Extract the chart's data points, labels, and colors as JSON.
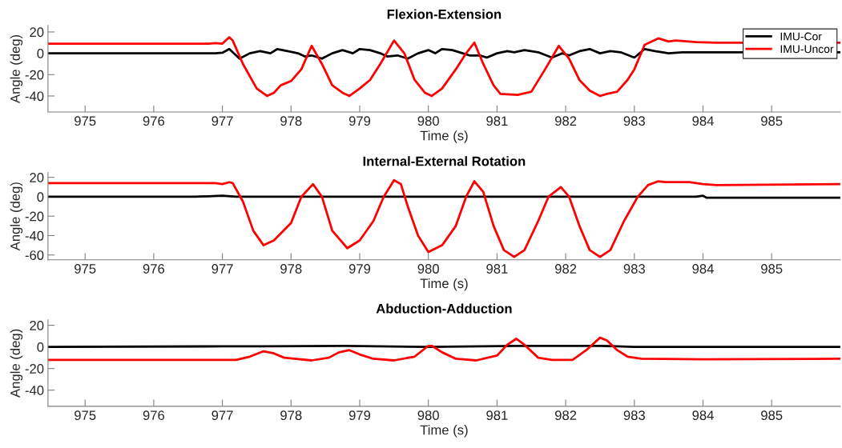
{
  "chart_data": [
    {
      "type": "line",
      "title": "Flexion-Extension",
      "xlabel": "Time (s)",
      "ylabel": "Angle (deg)",
      "xlim": [
        974.46,
        986.0
      ],
      "xticks": [
        975,
        976,
        977,
        978,
        979,
        980,
        981,
        982,
        983,
        984,
        985
      ],
      "ylim": [
        -55,
        26
      ],
      "yticks": [
        -40,
        -20,
        0,
        20
      ],
      "grid": false,
      "legend": "top right",
      "series": [
        {
          "name": "IMU-Cor",
          "color": "#000000",
          "x": [
            974.46,
            976.9,
            977.0,
            977.1,
            977.25,
            977.4,
            977.55,
            977.7,
            977.8,
            977.95,
            978.1,
            978.2,
            978.3,
            978.45,
            978.6,
            978.75,
            978.9,
            979.0,
            979.15,
            979.3,
            979.4,
            979.55,
            979.7,
            979.85,
            980.0,
            980.1,
            980.2,
            980.35,
            980.5,
            980.6,
            980.75,
            980.85,
            981.0,
            981.15,
            981.25,
            981.4,
            981.6,
            981.8,
            981.95,
            982.05,
            982.2,
            982.35,
            982.5,
            982.65,
            982.8,
            983.0,
            983.15,
            983.3,
            983.5,
            983.7,
            986.0
          ],
          "values": [
            0,
            0,
            0.5,
            4,
            -5,
            0,
            2,
            0,
            4,
            2,
            0,
            -3,
            -2,
            -5,
            0,
            3,
            0,
            4,
            3,
            0,
            -3,
            -2,
            -5,
            0,
            3,
            0,
            4,
            3,
            0,
            -2,
            -2,
            -4,
            0,
            2,
            1,
            3,
            1,
            -4,
            0,
            -2,
            2,
            4,
            0,
            2,
            1,
            -4,
            4,
            2,
            0,
            1,
            1
          ]
        },
        {
          "name": "IMU-Uncor",
          "color": "#ff0000",
          "x": [
            974.46,
            976.8,
            976.9,
            977.0,
            977.1,
            977.15,
            977.3,
            977.5,
            977.65,
            977.75,
            977.85,
            978.0,
            978.15,
            978.3,
            978.45,
            978.6,
            978.75,
            978.85,
            979.0,
            979.15,
            979.3,
            979.5,
            979.65,
            979.8,
            979.95,
            980.05,
            980.2,
            980.4,
            980.55,
            980.67,
            980.8,
            980.95,
            981.05,
            981.3,
            981.5,
            981.7,
            981.9,
            982.05,
            982.2,
            982.35,
            982.5,
            982.6,
            982.75,
            982.9,
            983.0,
            983.15,
            983.25,
            983.35,
            983.5,
            983.6,
            983.9,
            984.2,
            986.0
          ],
          "values": [
            9,
            9,
            9.5,
            9,
            15,
            12,
            -10,
            -33,
            -40,
            -37,
            -30,
            -26,
            -15,
            7,
            -10,
            -30,
            -37,
            -40,
            -33,
            -25,
            -10,
            12,
            0,
            -25,
            -37,
            -40,
            -33,
            -15,
            0,
            10,
            -10,
            -30,
            -38,
            -39,
            -36,
            -15,
            7,
            -5,
            -25,
            -35,
            -40,
            -38,
            -36,
            -25,
            -15,
            8,
            11,
            14,
            11,
            12,
            10.5,
            10,
            10
          ]
        }
      ]
    },
    {
      "type": "line",
      "title": "Internal-External Rotation",
      "xlabel": "Time (s)",
      "ylabel": "Angle (deg)",
      "xlim": [
        974.46,
        986.0
      ],
      "xticks": [
        975,
        976,
        977,
        978,
        979,
        980,
        981,
        982,
        983,
        984,
        985
      ],
      "ylim": [
        -65,
        25
      ],
      "yticks": [
        -60,
        -40,
        -20,
        0,
        20
      ],
      "grid": false,
      "series": [
        {
          "color": "#000000",
          "x": [
            974.46,
            976.6,
            977.0,
            977.2,
            983.9,
            984.0,
            984.05,
            986.0
          ],
          "values": [
            0,
            0,
            1,
            0,
            0,
            1,
            -1,
            -1
          ]
        },
        {
          "color": "#ff0000",
          "x": [
            974.46,
            976.9,
            977.0,
            977.1,
            977.15,
            977.3,
            977.45,
            977.6,
            977.75,
            978.0,
            978.15,
            978.32,
            978.45,
            978.6,
            978.82,
            979.0,
            979.2,
            979.35,
            979.5,
            979.6,
            979.7,
            979.85,
            980.0,
            980.2,
            980.4,
            980.55,
            980.67,
            980.8,
            980.95,
            981.1,
            981.25,
            981.4,
            981.6,
            981.75,
            981.93,
            982.05,
            982.2,
            982.35,
            982.5,
            982.65,
            982.85,
            983.05,
            983.2,
            983.35,
            983.45,
            983.8,
            984.0,
            984.2,
            986.0
          ],
          "values": [
            14,
            14,
            13,
            15,
            14,
            -5,
            -35,
            -50,
            -45,
            -27,
            0,
            13,
            0,
            -35,
            -53,
            -45,
            -25,
            0,
            17,
            13,
            -10,
            -40,
            -57,
            -50,
            -30,
            0,
            16,
            5,
            -30,
            -55,
            -62,
            -55,
            -25,
            0,
            10,
            0,
            -30,
            -55,
            -62,
            -55,
            -25,
            0,
            12,
            16,
            15,
            15,
            13,
            12,
            13
          ]
        }
      ]
    },
    {
      "type": "line",
      "title": "Abduction-Adduction",
      "xlabel": "Time (s)",
      "ylabel": "Angle (deg)",
      "xlim": [
        974.46,
        986.0
      ],
      "xticks": [
        975,
        976,
        977,
        978,
        979,
        980,
        981,
        982,
        983,
        984,
        985
      ],
      "ylim": [
        -55,
        25
      ],
      "yticks": [
        -40,
        -20,
        0,
        20
      ],
      "grid": false,
      "series": [
        {
          "color": "#000000",
          "x": [
            974.46,
            977.0,
            977.6,
            978.8,
            980.0,
            981.3,
            982.5,
            983.0,
            986.0
          ],
          "values": [
            0,
            0.5,
            0.5,
            1,
            0,
            1,
            1,
            0,
            0
          ]
        },
        {
          "color": "#ff0000",
          "x": [
            974.46,
            977.0,
            977.2,
            977.4,
            977.6,
            977.75,
            977.9,
            978.3,
            978.55,
            978.7,
            978.85,
            979.0,
            979.2,
            979.5,
            979.8,
            980.0,
            980.05,
            980.2,
            980.4,
            980.7,
            981.0,
            981.15,
            981.28,
            981.4,
            981.6,
            981.8,
            982.1,
            982.3,
            982.5,
            982.6,
            982.75,
            982.9,
            983.1,
            984.0,
            986.0
          ],
          "values": [
            -12,
            -12,
            -12,
            -9,
            -4,
            -6,
            -10,
            -12.5,
            -10,
            -5,
            -3,
            -7,
            -11,
            -12.5,
            -9,
            1,
            1,
            -5,
            -11,
            -12.5,
            -8,
            2,
            7.5,
            2,
            -10,
            -12,
            -12,
            -3,
            8.5,
            6,
            -3,
            -9,
            -11,
            -11.5,
            -11
          ]
        }
      ]
    }
  ]
}
